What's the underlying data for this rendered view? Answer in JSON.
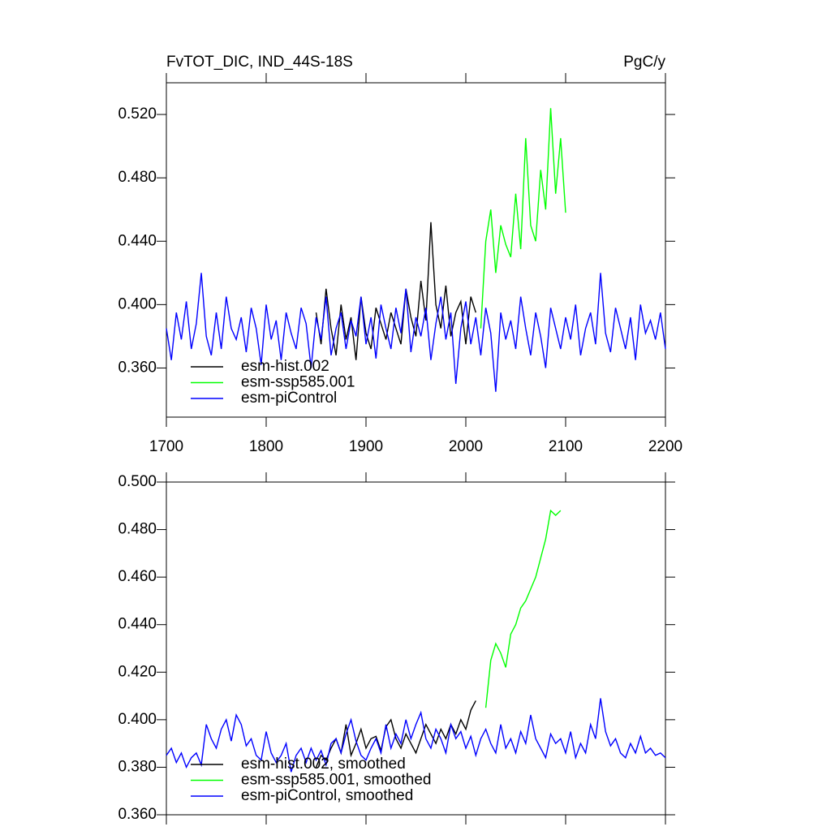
{
  "chart_data": [
    {
      "type": "line",
      "title": "FvTOT_DIC, IND_44S-18S",
      "subtitle": "PgC/y",
      "xlim": [
        1700,
        2200
      ],
      "xticks": [
        1700,
        1800,
        1900,
        2000,
        2100,
        2200
      ],
      "ylim": [
        0.329,
        0.54
      ],
      "yticks": [
        {
          "value": 0.36,
          "label": "0.360"
        },
        {
          "value": 0.4,
          "label": "0.400"
        },
        {
          "value": 0.44,
          "label": "0.440"
        },
        {
          "value": 0.48,
          "label": "0.480"
        },
        {
          "value": 0.52,
          "label": "0.520"
        }
      ],
      "legend": "lower left",
      "series": [
        {
          "name": "esm-hist.002",
          "color": "#000000",
          "x": [
            1850,
            1855,
            1860,
            1865,
            1870,
            1875,
            1880,
            1885,
            1890,
            1895,
            1900,
            1905,
            1910,
            1915,
            1920,
            1925,
            1930,
            1935,
            1940,
            1945,
            1950,
            1955,
            1960,
            1965,
            1970,
            1975,
            1980,
            1985,
            1990,
            1995,
            2000,
            2005,
            2010
          ],
          "values": [
            0.395,
            0.375,
            0.41,
            0.385,
            0.368,
            0.4,
            0.378,
            0.392,
            0.365,
            0.405,
            0.382,
            0.372,
            0.398,
            0.388,
            0.378,
            0.395,
            0.385,
            0.375,
            0.41,
            0.392,
            0.38,
            0.415,
            0.39,
            0.452,
            0.4,
            0.385,
            0.412,
            0.38,
            0.395,
            0.402,
            0.375,
            0.405,
            0.395
          ]
        },
        {
          "name": "esm-ssp585.001",
          "color": "#00ff00",
          "x": [
            2015,
            2020,
            2025,
            2030,
            2035,
            2040,
            2045,
            2050,
            2055,
            2060,
            2065,
            2070,
            2075,
            2080,
            2085,
            2090,
            2095,
            2100
          ],
          "values": [
            0.385,
            0.44,
            0.46,
            0.42,
            0.45,
            0.438,
            0.43,
            0.47,
            0.435,
            0.505,
            0.45,
            0.44,
            0.485,
            0.46,
            0.524,
            0.47,
            0.505,
            0.458
          ]
        },
        {
          "name": "esm-piControl",
          "color": "#0000ff",
          "x": [
            1700,
            1705,
            1710,
            1715,
            1720,
            1725,
            1730,
            1735,
            1740,
            1745,
            1750,
            1755,
            1760,
            1765,
            1770,
            1775,
            1780,
            1785,
            1790,
            1795,
            1800,
            1805,
            1810,
            1815,
            1820,
            1825,
            1830,
            1835,
            1840,
            1845,
            1850,
            1855,
            1860,
            1865,
            1870,
            1875,
            1880,
            1885,
            1890,
            1895,
            1900,
            1905,
            1910,
            1915,
            1920,
            1925,
            1930,
            1935,
            1940,
            1945,
            1950,
            1955,
            1960,
            1965,
            1970,
            1975,
            1980,
            1985,
            1990,
            1995,
            2000,
            2005,
            2010,
            2015,
            2020,
            2025,
            2030,
            2035,
            2040,
            2045,
            2050,
            2055,
            2060,
            2065,
            2070,
            2075,
            2080,
            2085,
            2090,
            2095,
            2100,
            2105,
            2110,
            2115,
            2120,
            2125,
            2130,
            2135,
            2140,
            2145,
            2150,
            2155,
            2160,
            2165,
            2170,
            2175,
            2180,
            2185,
            2190,
            2195,
            2200
          ],
          "values": [
            0.385,
            0.365,
            0.395,
            0.378,
            0.402,
            0.372,
            0.388,
            0.42,
            0.38,
            0.368,
            0.395,
            0.372,
            0.405,
            0.385,
            0.378,
            0.392,
            0.37,
            0.398,
            0.385,
            0.362,
            0.4,
            0.378,
            0.39,
            0.365,
            0.395,
            0.382,
            0.372,
            0.398,
            0.388,
            0.36,
            0.392,
            0.378,
            0.405,
            0.368,
            0.385,
            0.395,
            0.372,
            0.39,
            0.38,
            0.405,
            0.375,
            0.392,
            0.366,
            0.4,
            0.385,
            0.372,
            0.398,
            0.382,
            0.41,
            0.37,
            0.392,
            0.38,
            0.398,
            0.365,
            0.388,
            0.405,
            0.378,
            0.395,
            0.35,
            0.385,
            0.402,
            0.375,
            0.392,
            0.368,
            0.398,
            0.382,
            0.345,
            0.395,
            0.378,
            0.39,
            0.372,
            0.405,
            0.385,
            0.368,
            0.395,
            0.38,
            0.36,
            0.398,
            0.385,
            0.372,
            0.392,
            0.378,
            0.4,
            0.368,
            0.385,
            0.395,
            0.375,
            0.42,
            0.382,
            0.37,
            0.398,
            0.385,
            0.372,
            0.392,
            0.365,
            0.4,
            0.382,
            0.39,
            0.378,
            0.395,
            0.372
          ]
        }
      ]
    },
    {
      "type": "line",
      "xlim": [
        1700,
        2200
      ],
      "ylim": [
        0.36,
        0.5
      ],
      "yticks": [
        {
          "value": 0.36,
          "label": "0.360"
        },
        {
          "value": 0.38,
          "label": "0.380"
        },
        {
          "value": 0.4,
          "label": "0.400"
        },
        {
          "value": 0.42,
          "label": "0.420"
        },
        {
          "value": 0.44,
          "label": "0.440"
        },
        {
          "value": 0.46,
          "label": "0.460"
        },
        {
          "value": 0.48,
          "label": "0.480"
        },
        {
          "value": 0.5,
          "label": "0.500"
        }
      ],
      "legend": "lower left",
      "series": [
        {
          "name": "esm-hist.002, smoothed",
          "color": "#000000",
          "x": [
            1850,
            1855,
            1860,
            1865,
            1870,
            1875,
            1880,
            1885,
            1890,
            1895,
            1900,
            1905,
            1910,
            1915,
            1920,
            1925,
            1930,
            1935,
            1940,
            1945,
            1950,
            1955,
            1960,
            1965,
            1970,
            1975,
            1980,
            1985,
            1990,
            1995,
            2000,
            2005,
            2010
          ],
          "values": [
            0.38,
            0.385,
            0.383,
            0.388,
            0.392,
            0.386,
            0.398,
            0.385,
            0.39,
            0.396,
            0.388,
            0.392,
            0.393,
            0.387,
            0.397,
            0.4,
            0.392,
            0.388,
            0.394,
            0.39,
            0.386,
            0.392,
            0.398,
            0.394,
            0.39,
            0.396,
            0.392,
            0.398,
            0.394,
            0.4,
            0.396,
            0.404,
            0.408
          ]
        },
        {
          "name": "esm-ssp585.001, smoothed",
          "color": "#00ff00",
          "x": [
            2020,
            2025,
            2030,
            2035,
            2040,
            2045,
            2050,
            2055,
            2060,
            2065,
            2070,
            2075,
            2080,
            2085,
            2090,
            2095
          ],
          "values": [
            0.405,
            0.425,
            0.432,
            0.428,
            0.422,
            0.436,
            0.44,
            0.447,
            0.45,
            0.455,
            0.46,
            0.468,
            0.476,
            0.488,
            0.486,
            0.488
          ]
        },
        {
          "name": "esm-piControl, smoothed",
          "color": "#0000ff",
          "x": [
            1700,
            1705,
            1710,
            1715,
            1720,
            1725,
            1730,
            1735,
            1740,
            1745,
            1750,
            1755,
            1760,
            1765,
            1770,
            1775,
            1780,
            1785,
            1790,
            1795,
            1800,
            1805,
            1810,
            1815,
            1820,
            1825,
            1830,
            1835,
            1840,
            1845,
            1850,
            1855,
            1860,
            1865,
            1870,
            1875,
            1880,
            1885,
            1890,
            1895,
            1900,
            1905,
            1910,
            1915,
            1920,
            1925,
            1930,
            1935,
            1940,
            1945,
            1950,
            1955,
            1960,
            1965,
            1970,
            1975,
            1980,
            1985,
            1990,
            1995,
            2000,
            2005,
            2010,
            2015,
            2020,
            2025,
            2030,
            2035,
            2040,
            2045,
            2050,
            2055,
            2060,
            2065,
            2070,
            2075,
            2080,
            2085,
            2090,
            2095,
            2100,
            2105,
            2110,
            2115,
            2120,
            2125,
            2130,
            2135,
            2140,
            2145,
            2150,
            2155,
            2160,
            2165,
            2170,
            2175,
            2180,
            2185,
            2190,
            2195,
            2200
          ],
          "values": [
            0.385,
            0.388,
            0.382,
            0.386,
            0.38,
            0.384,
            0.386,
            0.381,
            0.398,
            0.392,
            0.388,
            0.396,
            0.4,
            0.391,
            0.402,
            0.398,
            0.389,
            0.392,
            0.385,
            0.383,
            0.395,
            0.386,
            0.382,
            0.385,
            0.39,
            0.378,
            0.385,
            0.388,
            0.382,
            0.388,
            0.383,
            0.387,
            0.381,
            0.39,
            0.392,
            0.386,
            0.394,
            0.4,
            0.391,
            0.385,
            0.383,
            0.388,
            0.392,
            0.386,
            0.398,
            0.388,
            0.394,
            0.39,
            0.4,
            0.392,
            0.398,
            0.403,
            0.392,
            0.388,
            0.396,
            0.392,
            0.386,
            0.398,
            0.392,
            0.395,
            0.388,
            0.393,
            0.385,
            0.392,
            0.396,
            0.39,
            0.386,
            0.398,
            0.388,
            0.392,
            0.386,
            0.395,
            0.39,
            0.402,
            0.392,
            0.388,
            0.384,
            0.394,
            0.39,
            0.392,
            0.386,
            0.395,
            0.384,
            0.39,
            0.386,
            0.398,
            0.392,
            0.409,
            0.395,
            0.389,
            0.392,
            0.386,
            0.384,
            0.39,
            0.386,
            0.393,
            0.386,
            0.388,
            0.385,
            0.386,
            0.384
          ]
        }
      ]
    }
  ]
}
